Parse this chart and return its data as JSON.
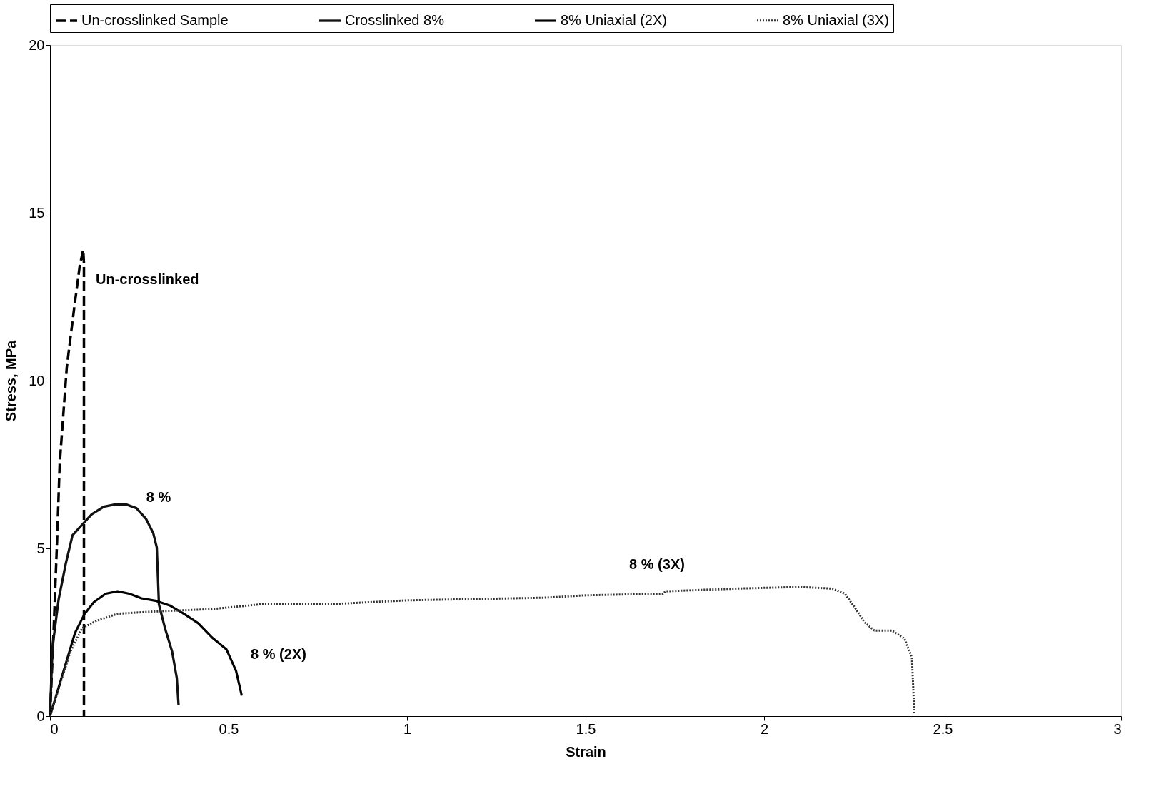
{
  "chart_data": {
    "type": "line",
    "xlabel": "Strain",
    "ylabel": "Stress, MPa",
    "xlim": [
      0,
      3
    ],
    "ylim": [
      0,
      20
    ],
    "xticks": [
      0,
      0.5,
      1,
      1.5,
      2,
      2.5,
      3
    ],
    "yticks": [
      0,
      5,
      10,
      15,
      20
    ],
    "grid": false,
    "legend": "top",
    "marker": "none",
    "series": [
      {
        "name": "Un-crosslinked Sample",
        "color": "#000000",
        "line_style": "dashed",
        "x": [
          0,
          0.01,
          0.02,
          0.027,
          0.047,
          0.067,
          0.083,
          0.093,
          0.095,
          0.095
        ],
        "values": [
          0,
          2.5,
          5.3,
          7.5,
          10.4,
          12.1,
          13.4,
          13.9,
          13.5,
          0
        ]
      },
      {
        "name": "Crosslinked 8%",
        "color": "#111111",
        "line_style": "solid",
        "x": [
          0,
          0.007,
          0.024,
          0.044,
          0.063,
          0.093,
          0.117,
          0.15,
          0.183,
          0.213,
          0.242,
          0.269,
          0.289,
          0.299,
          0.302,
          0.305,
          0.322,
          0.342,
          0.355,
          0.36
        ],
        "values": [
          0,
          2.06,
          3.47,
          4.54,
          5.39,
          5.74,
          6.02,
          6.24,
          6.31,
          6.31,
          6.2,
          5.88,
          5.46,
          5.03,
          4.18,
          3.33,
          2.62,
          1.92,
          1.14,
          0.32
        ]
      },
      {
        "name": "8% Uniaxial (2X)",
        "color": "#000000",
        "line_style": "solid",
        "x": [
          0,
          0.044,
          0.07,
          0.097,
          0.123,
          0.156,
          0.189,
          0.222,
          0.256,
          0.295,
          0.335,
          0.375,
          0.415,
          0.454,
          0.494,
          0.521,
          0.537
        ],
        "values": [
          0,
          1.56,
          2.48,
          3.05,
          3.4,
          3.65,
          3.72,
          3.65,
          3.51,
          3.44,
          3.3,
          3.05,
          2.77,
          2.34,
          1.99,
          1.35,
          0.61
        ]
      },
      {
        "name": "8% Uniaxial (3X)",
        "color": "#333333",
        "line_style": "dotted",
        "x": [
          0,
          0.057,
          0.09,
          0.13,
          0.189,
          0.295,
          0.454,
          0.587,
          0.773,
          1.0,
          1.389,
          1.5,
          1.717,
          1.724,
          1.919,
          2.1,
          2.191,
          2.226,
          2.254,
          2.282,
          2.309,
          2.358,
          2.393,
          2.414,
          2.421
        ],
        "values": [
          0,
          1.92,
          2.62,
          2.84,
          3.05,
          3.12,
          3.19,
          3.33,
          3.33,
          3.45,
          3.53,
          3.6,
          3.65,
          3.72,
          3.8,
          3.85,
          3.8,
          3.65,
          3.24,
          2.79,
          2.55,
          2.55,
          2.31,
          1.75,
          0.03
        ]
      }
    ],
    "annotations": [
      "Un-crosslinked",
      "8 %",
      "8 % (2X)",
      "8 % (3X)"
    ]
  }
}
